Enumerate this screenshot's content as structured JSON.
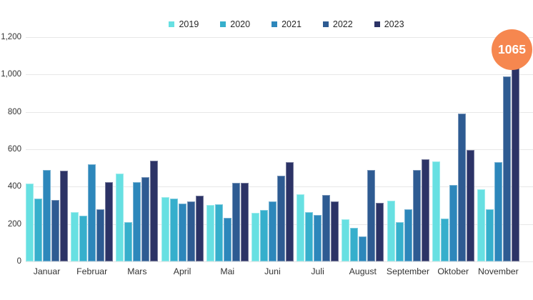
{
  "chart_data": {
    "type": "bar",
    "title": "",
    "categories": [
      "Januar",
      "Februar",
      "Mars",
      "April",
      "Mai",
      "Juni",
      "Juli",
      "August",
      "September",
      "Oktober",
      "November"
    ],
    "series": [
      {
        "name": "2019",
        "color": "#67E0E2",
        "values": [
          415,
          265,
          470,
          345,
          300,
          260,
          360,
          225,
          325,
          535,
          385
        ]
      },
      {
        "name": "2020",
        "color": "#36AFCC",
        "values": [
          335,
          245,
          210,
          335,
          305,
          275,
          265,
          180,
          210,
          230,
          280
        ]
      },
      {
        "name": "2021",
        "color": "#2D87BB",
        "values": [
          490,
          520,
          425,
          310,
          235,
          320,
          250,
          135,
          280,
          410,
          530
        ]
      },
      {
        "name": "2022",
        "color": "#2E5B92",
        "values": [
          330,
          280,
          450,
          320,
          420,
          460,
          355,
          490,
          490,
          790,
          990
        ]
      },
      {
        "name": "2023",
        "color": "#2C3366",
        "values": [
          485,
          425,
          540,
          350,
          420,
          530,
          320,
          315,
          545,
          595,
          1065
        ]
      }
    ],
    "ylim": [
      0,
      1200
    ],
    "yticks": [
      {
        "label": "1,200",
        "value": 1200
      },
      {
        "label": "1,000",
        "value": 1000
      },
      {
        "label": "800",
        "value": 800
      },
      {
        "label": "600",
        "value": 600
      },
      {
        "label": "400",
        "value": 400
      },
      {
        "label": "200",
        "value": 200
      },
      {
        "label": "0",
        "value": 0
      }
    ],
    "grid": true,
    "legend_position": "top"
  },
  "badge": {
    "value": "1065"
  },
  "colors": {
    "background": "#FFFFFF",
    "grid": "#E7E7E7",
    "axis_text": "#333333",
    "badge_bg": "#F6874F",
    "badge_text": "#FFFFFF"
  }
}
